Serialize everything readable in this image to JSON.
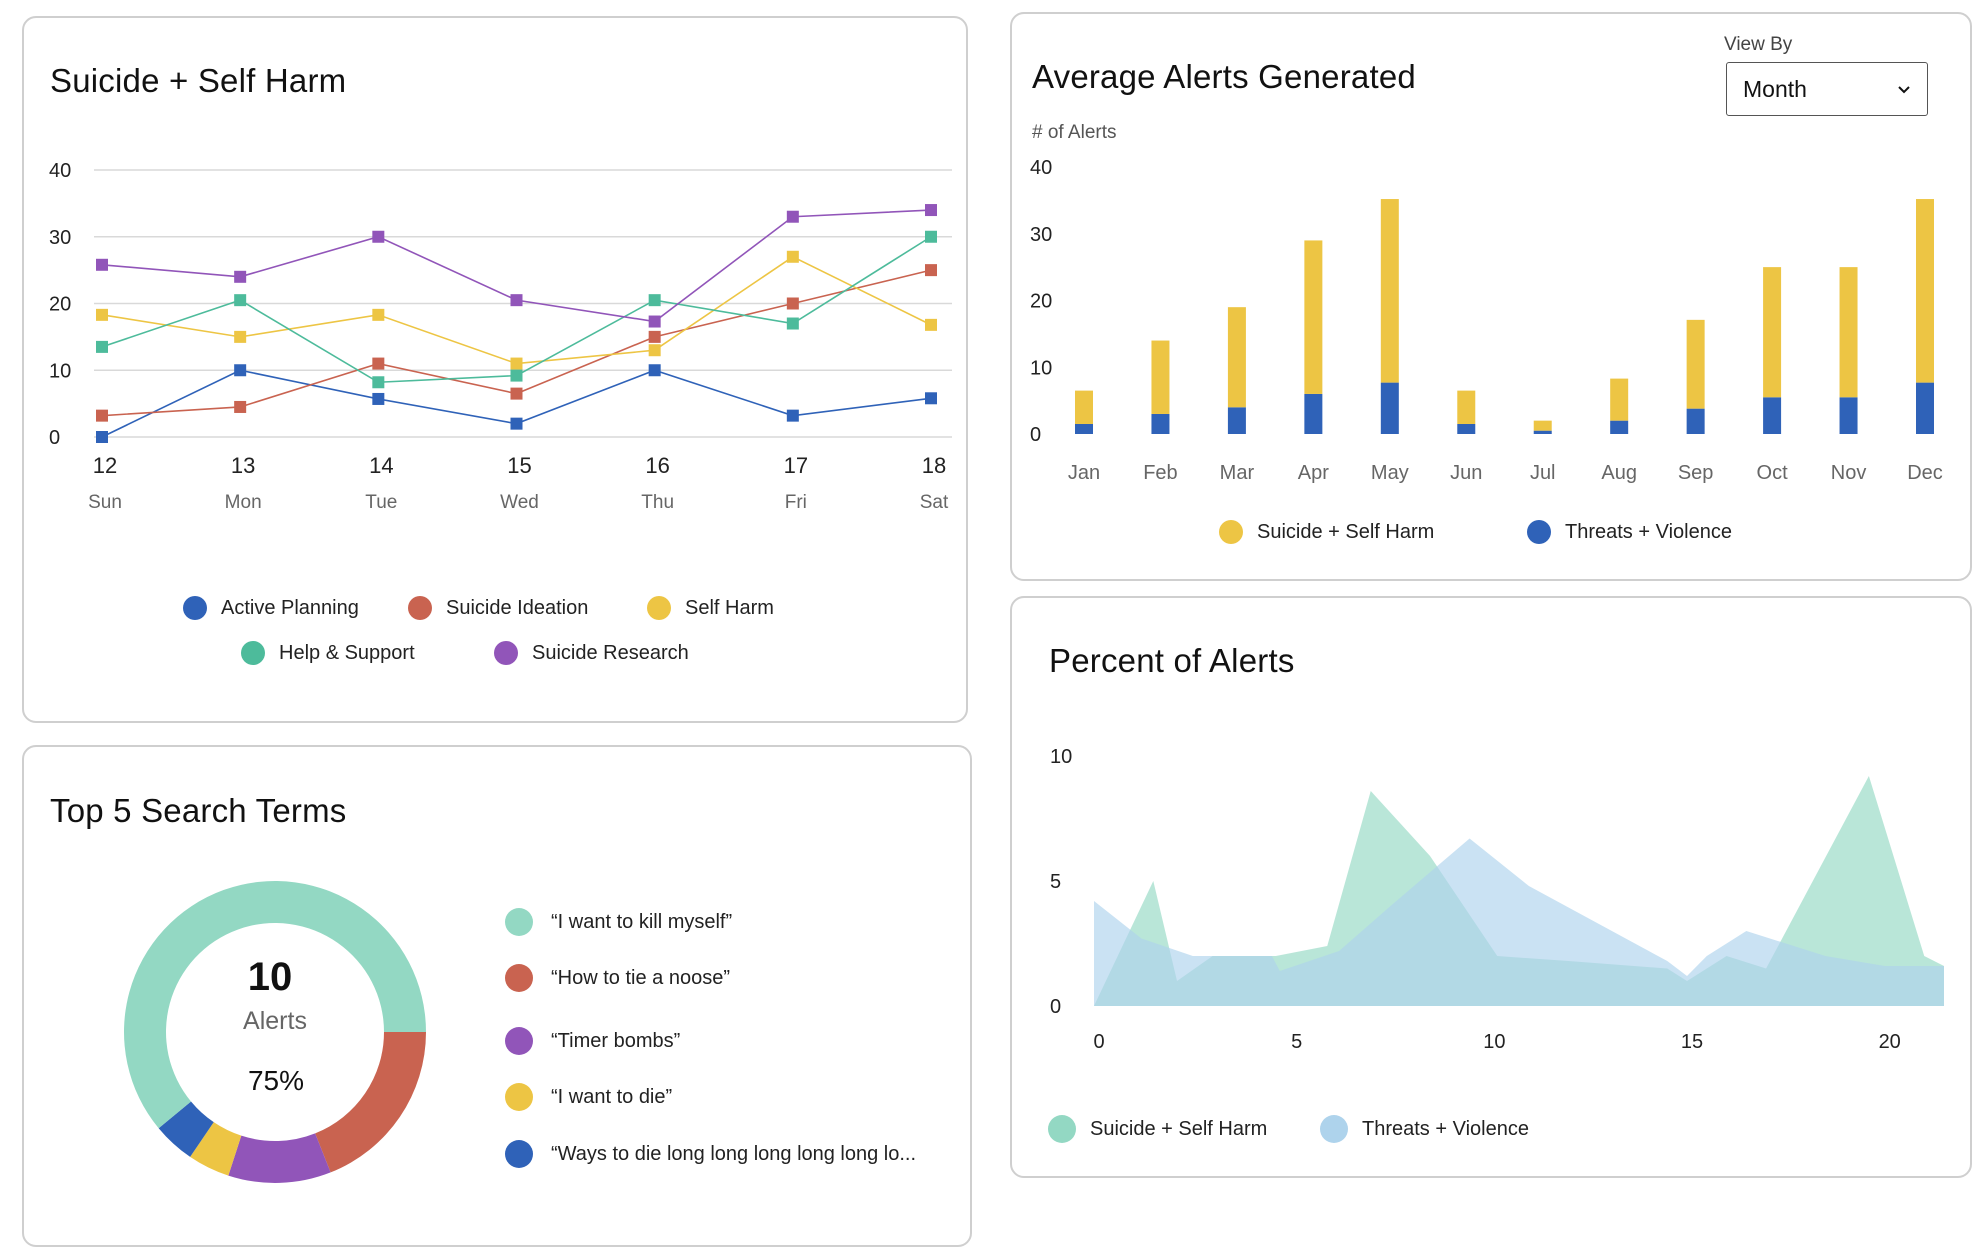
{
  "line_card": {
    "title": "Suicide + Self Harm",
    "legend": [
      {
        "label": "Active Planning",
        "color": "#2f62b8"
      },
      {
        "label": "Suicide Ideation",
        "color": "#c96350"
      },
      {
        "label": "Self Harm",
        "color": "#edc544"
      },
      {
        "label": "Help & Support",
        "color": "#4dbb9b"
      },
      {
        "label": "Suicide Research",
        "color": "#9155b9"
      }
    ]
  },
  "bar_card": {
    "title": "Average Alerts Generated",
    "view_by_label": "View By",
    "view_by_value": "Month",
    "legend": [
      {
        "label": "Suicide + Self Harm",
        "color": "#edc544"
      },
      {
        "label": "Threats + Violence",
        "color": "#2f62b8"
      }
    ]
  },
  "area_card": {
    "title": "Percent of Alerts",
    "legend": [
      {
        "label": "Suicide + Self Harm",
        "color": "#93d8c3"
      },
      {
        "label": "Threats + Violence",
        "color": "#aed3ec"
      }
    ]
  },
  "donut_card": {
    "title": "Top 5 Search Terms",
    "center_value": "10",
    "center_label": "Alerts",
    "center_percent": "75%",
    "terms": [
      {
        "label": "“I want to kill myself”",
        "color": "#93d8c3"
      },
      {
        "label": "“How to tie a noose”",
        "color": "#c96350"
      },
      {
        "label": "“Timer bombs”",
        "color": "#9155b9"
      },
      {
        "label": "“I want to die”",
        "color": "#edc544"
      },
      {
        "label": "“Ways to die long long long long long lo...",
        "color": "#2f62b8"
      }
    ]
  },
  "chart_data": [
    {
      "type": "line",
      "title": "Suicide + Self Harm",
      "x": [
        "12",
        "13",
        "14",
        "15",
        "16",
        "17",
        "18"
      ],
      "x_sub": [
        "Sun",
        "Mon",
        "Tue",
        "Wed",
        "Thu",
        "Fri",
        "Sat"
      ],
      "ylim": [
        0,
        40
      ],
      "yticks": [
        0,
        10,
        20,
        30,
        40
      ],
      "grid": true,
      "series": [
        {
          "name": "Active Planning",
          "color": "#2f62b8",
          "values": [
            0,
            10,
            5.7,
            2,
            10,
            3.2,
            5.8
          ]
        },
        {
          "name": "Suicide Ideation",
          "color": "#c96350",
          "values": [
            3.2,
            4.5,
            11,
            6.5,
            15,
            20,
            25
          ]
        },
        {
          "name": "Self Harm",
          "color": "#edc544",
          "values": [
            18.3,
            15,
            18.3,
            11,
            13,
            27,
            16.8
          ]
        },
        {
          "name": "Help & Support",
          "color": "#4dbb9b",
          "values": [
            13.5,
            20.5,
            8.2,
            9.2,
            20.5,
            17,
            30
          ]
        },
        {
          "name": "Suicide Research",
          "color": "#9155b9",
          "values": [
            25.8,
            24,
            30,
            20.5,
            17.3,
            33,
            34
          ]
        }
      ],
      "legend_position": "bottom"
    },
    {
      "type": "bar",
      "title": "Average Alerts Generated",
      "ylabel": "# of Alerts",
      "stacked": true,
      "categories": [
        "Jan",
        "Feb",
        "Mar",
        "Apr",
        "May",
        "Jun",
        "Jul",
        "Aug",
        "Sep",
        "Oct",
        "Nov",
        "Dec"
      ],
      "ylim": [
        0,
        40
      ],
      "yticks": [
        0,
        10,
        20,
        30,
        40
      ],
      "series": [
        {
          "name": "Threats + Violence",
          "color": "#2f62b8",
          "values": [
            1.5,
            3,
            4,
            6,
            7.7,
            1.5,
            0.5,
            2,
            3.8,
            5.5,
            5.5,
            7.7
          ]
        },
        {
          "name": "Suicide + Self Harm",
          "color": "#edc544",
          "values": [
            5,
            11,
            15,
            23,
            27.5,
            5,
            1.5,
            6.3,
            13.3,
            19.5,
            19.5,
            27.5
          ]
        }
      ],
      "legend_position": "bottom"
    },
    {
      "type": "area",
      "title": "Percent of Alerts",
      "xlim": [
        0,
        21.5
      ],
      "xticks": [
        0,
        5,
        10,
        15,
        20
      ],
      "ylim": [
        0,
        10
      ],
      "yticks": [
        0,
        5,
        10
      ],
      "series": [
        {
          "name": "Suicide + Self Harm",
          "color": "#93d8c3",
          "points": [
            [
              0,
              0
            ],
            [
              1.5,
              5
            ],
            [
              2.1,
              1
            ],
            [
              3,
              2
            ],
            [
              4.6,
              2
            ],
            [
              5.9,
              2.4
            ],
            [
              7,
              8.6
            ],
            [
              8.5,
              6
            ],
            [
              10.2,
              2
            ],
            [
              12,
              1.8
            ],
            [
              14.5,
              1.5
            ],
            [
              15,
              1
            ],
            [
              16,
              2
            ],
            [
              17,
              1.5
            ],
            [
              19.6,
              9.2
            ],
            [
              21,
              2
            ],
            [
              21.5,
              1.6
            ]
          ]
        },
        {
          "name": "Threats + Violence",
          "color": "#aed3ec",
          "points": [
            [
              0,
              4.2
            ],
            [
              1.2,
              2.7
            ],
            [
              2.5,
              2
            ],
            [
              4.5,
              2
            ],
            [
              4.7,
              1.4
            ],
            [
              6.2,
              2.2
            ],
            [
              7.5,
              4
            ],
            [
              9.5,
              6.7
            ],
            [
              11,
              4.8
            ],
            [
              14.5,
              1.8
            ],
            [
              15,
              1.2
            ],
            [
              15.5,
              2
            ],
            [
              16.5,
              3
            ],
            [
              18.5,
              2
            ],
            [
              20,
              1.6
            ],
            [
              21.5,
              1.6
            ]
          ]
        }
      ],
      "legend_position": "bottom"
    },
    {
      "type": "pie",
      "title": "Top 5 Search Terms",
      "labels": [
        "“I want to kill myself”",
        "“How to tie a noose”",
        "“Timer bombs”",
        "“I want to die”",
        "“Ways to die long long long long long lo..."
      ],
      "values": [
        61,
        19,
        11,
        4.5,
        4.5
      ],
      "colors": [
        "#93d8c3",
        "#c96350",
        "#9155b9",
        "#edc544",
        "#2f62b8"
      ],
      "donut": true
    }
  ]
}
